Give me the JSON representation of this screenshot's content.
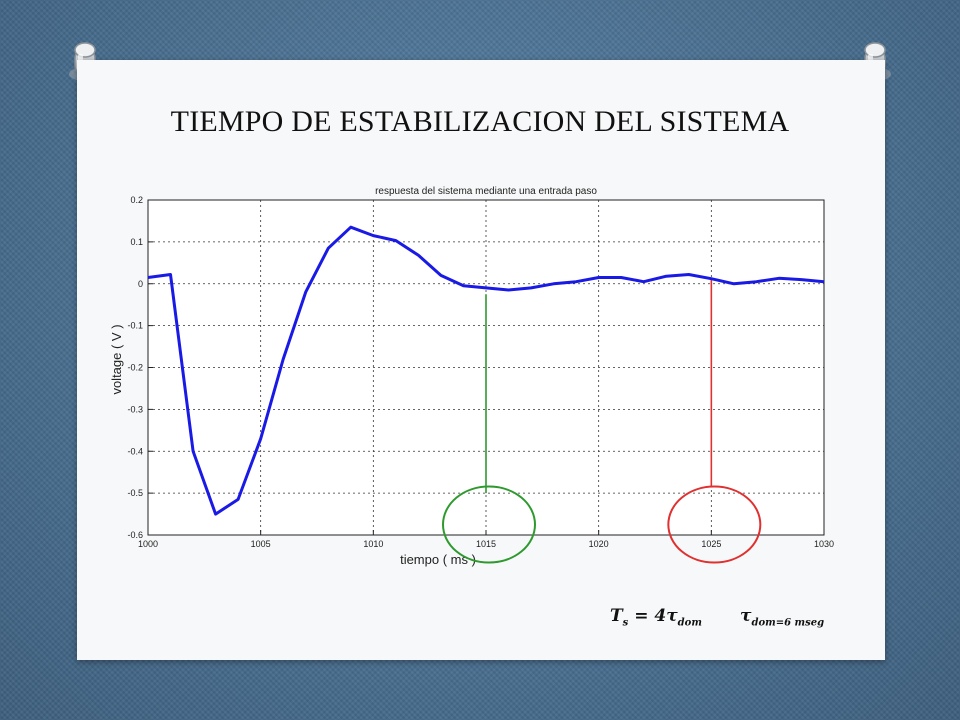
{
  "slide": {
    "title": "TIEMPO DE ESTABILIZACION DEL SISTEMA",
    "formula_ts": "T",
    "formula_ts_sub": "s",
    "formula_ts_eq": " = 4τ",
    "formula_ts_eq_sub": "dom",
    "formula_tau": "τ",
    "formula_tau_sub": "dom=6 mseg",
    "colors": {
      "background": "#4d7597",
      "card": "#f7f8f9",
      "series": "#1a1ae6",
      "green_marker": "#2e9a2e",
      "red_marker": "#e03030"
    }
  },
  "chart_data": {
    "type": "line",
    "title": "respuesta del sistema mediante una entrada paso",
    "xlabel": "tiempo ( ms )",
    "ylabel": "voltage ( V )",
    "xlim": [
      1000,
      1030
    ],
    "ylim": [
      -0.6,
      0.2
    ],
    "grid": true,
    "x_ticks": [
      1000,
      1005,
      1010,
      1015,
      1020,
      1025,
      1030
    ],
    "x_tick_labels": [
      "1000",
      "1005",
      "1010",
      "1015",
      "1020",
      "1025",
      "1030"
    ],
    "y_ticks": [
      0.2,
      0.1,
      0,
      -0.1,
      -0.2,
      -0.3,
      -0.4,
      -0.5,
      -0.6
    ],
    "y_tick_labels": [
      "0.2",
      "0.1",
      "0",
      "-0.1",
      "-0.2",
      "-0.3",
      "-0.4",
      "-0.5",
      "-0.6"
    ],
    "series": [
      {
        "x": [
          1000,
          1001,
          1002,
          1003,
          1004,
          1005,
          1006,
          1007,
          1008,
          1009,
          1010,
          1011,
          1012,
          1013,
          1014,
          1015,
          1016,
          1017,
          1018,
          1019,
          1020,
          1021,
          1022,
          1023,
          1024,
          1025,
          1026,
          1027,
          1028,
          1029,
          1030
        ],
        "y": [
          0.015,
          0.022,
          -0.4,
          -0.55,
          -0.515,
          -0.37,
          -0.18,
          -0.02,
          0.085,
          0.135,
          0.115,
          0.103,
          0.068,
          0.02,
          -0.005,
          -0.01,
          -0.015,
          -0.01,
          0.0,
          0.005,
          0.015,
          0.015,
          0.005,
          0.018,
          0.022,
          0.012,
          0.0,
          0.005,
          0.013,
          0.01,
          0.005
        ],
        "color": "#1a1ae6"
      }
    ],
    "annotations": [
      {
        "type": "vertical-line",
        "x": 1015,
        "y_from": -0.025,
        "y_to": -0.5,
        "color": "#2e9a2e"
      },
      {
        "type": "circle",
        "x": 1015,
        "y": -0.575,
        "color": "#2e9a2e"
      },
      {
        "type": "vertical-line",
        "x": 1025,
        "y_from": 0.01,
        "y_to": -0.485,
        "color": "#e03030"
      },
      {
        "type": "circle",
        "x": 1025,
        "y": -0.575,
        "color": "#e03030"
      }
    ]
  }
}
